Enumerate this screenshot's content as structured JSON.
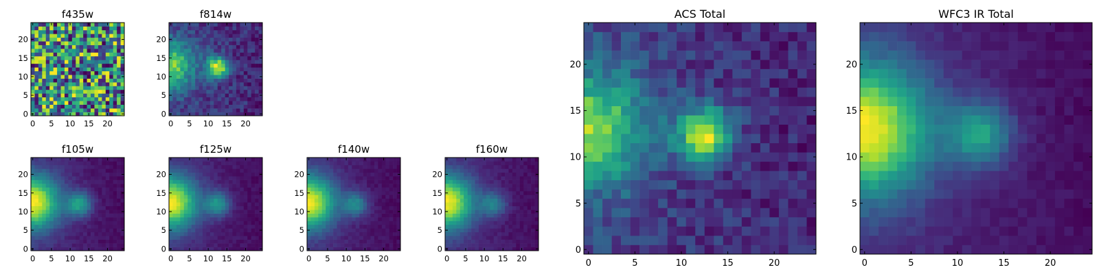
{
  "colormap": {
    "name": "viridis",
    "stops": [
      "#440154",
      "#482878",
      "#3e4989",
      "#31688e",
      "#26828e",
      "#1f9e89",
      "#35b779",
      "#6ece58",
      "#b5de2b",
      "#fde725"
    ]
  },
  "chart_data": [
    {
      "id": "f435w",
      "type": "heatmap",
      "title": "f435w",
      "image_size": [
        25,
        25
      ],
      "xlim": [
        -0.5,
        24.5
      ],
      "ylim": [
        -0.5,
        24.5
      ],
      "xticks": [
        0,
        5,
        10,
        15,
        20
      ],
      "yticks": [
        0,
        5,
        10,
        15,
        20
      ],
      "model": {
        "noise_level": "high",
        "point_source": null,
        "edge_source": null,
        "background": 0.78
      }
    },
    {
      "id": "f814w",
      "type": "heatmap",
      "title": "f814w",
      "image_size": [
        25,
        25
      ],
      "xlim": [
        -0.5,
        24.5
      ],
      "ylim": [
        -0.5,
        24.5
      ],
      "xticks": [
        0,
        5,
        10,
        15,
        20
      ],
      "yticks": [
        0,
        5,
        10,
        15,
        20
      ],
      "model": {
        "point_source": {
          "x": 12.5,
          "y": 12.5,
          "peak": 1.0,
          "width": 2.0
        },
        "edge_source": {
          "x": 0,
          "y": 13,
          "peak": 0.75,
          "width": 4.5
        },
        "background": 0.35,
        "noise_level": "medium"
      }
    },
    {
      "id": "f105w",
      "type": "heatmap",
      "title": "f105w",
      "image_size": [
        25,
        25
      ],
      "xlim": [
        -0.5,
        24.5
      ],
      "ylim": [
        -0.5,
        24.5
      ],
      "xticks": [
        0,
        5,
        10,
        15,
        20
      ],
      "yticks": [
        0,
        5,
        10,
        15,
        20
      ],
      "model": {
        "point_source": {
          "x": 12.5,
          "y": 12,
          "peak": 0.55,
          "width": 2.3
        },
        "edge_source": {
          "x": 0,
          "y": 12.5,
          "peak": 1.0,
          "width": 5.0
        },
        "background": 0.2,
        "noise_level": "low"
      }
    },
    {
      "id": "f125w",
      "type": "heatmap",
      "title": "f125w",
      "image_size": [
        25,
        25
      ],
      "xlim": [
        -0.5,
        24.5
      ],
      "ylim": [
        -0.5,
        24.5
      ],
      "xticks": [
        0,
        5,
        10,
        15,
        20
      ],
      "yticks": [
        0,
        5,
        10,
        15,
        20
      ],
      "model": {
        "point_source": {
          "x": 12.5,
          "y": 12,
          "peak": 0.5,
          "width": 2.3
        },
        "edge_source": {
          "x": 0,
          "y": 12.5,
          "peak": 1.0,
          "width": 5.0
        },
        "background": 0.2,
        "noise_level": "low"
      }
    },
    {
      "id": "f140w",
      "type": "heatmap",
      "title": "f140w",
      "image_size": [
        25,
        25
      ],
      "xlim": [
        -0.5,
        24.5
      ],
      "ylim": [
        -0.5,
        24.5
      ],
      "xticks": [
        0,
        5,
        10,
        15,
        20
      ],
      "yticks": [
        0,
        5,
        10,
        15,
        20
      ],
      "model": {
        "point_source": {
          "x": 12.5,
          "y": 12,
          "peak": 0.45,
          "width": 2.3
        },
        "edge_source": {
          "x": 0,
          "y": 12.5,
          "peak": 1.0,
          "width": 5.0
        },
        "background": 0.18,
        "noise_level": "low"
      }
    },
    {
      "id": "f160w",
      "type": "heatmap",
      "title": "f160w",
      "image_size": [
        25,
        25
      ],
      "xlim": [
        -0.5,
        24.5
      ],
      "ylim": [
        -0.5,
        24.5
      ],
      "xticks": [
        0,
        5,
        10,
        15,
        20
      ],
      "yticks": [
        0,
        5,
        10,
        15,
        20
      ],
      "model": {
        "point_source": {
          "x": 12.5,
          "y": 12,
          "peak": 0.42,
          "width": 2.3
        },
        "edge_source": {
          "x": 0,
          "y": 12.5,
          "peak": 1.0,
          "width": 5.0
        },
        "background": 0.15,
        "noise_level": "low"
      }
    },
    {
      "id": "acs-total",
      "type": "heatmap",
      "title": "ACS Total",
      "image_size": [
        25,
        25
      ],
      "xlim": [
        -0.5,
        24.5
      ],
      "ylim": [
        -0.5,
        24.5
      ],
      "xticks": [
        0,
        5,
        10,
        15,
        20
      ],
      "yticks": [
        0,
        5,
        10,
        15,
        20
      ],
      "model": {
        "point_source": {
          "x": 12.5,
          "y": 12.5,
          "peak": 1.0,
          "width": 2.0
        },
        "edge_source": {
          "x": 0,
          "y": 13,
          "peak": 0.8,
          "width": 4.5
        },
        "background": 0.35,
        "noise_level": "medium"
      }
    },
    {
      "id": "wfc3-ir-total",
      "type": "heatmap",
      "title": "WFC3 IR Total",
      "image_size": [
        25,
        25
      ],
      "xlim": [
        -0.5,
        24.5
      ],
      "ylim": [
        -0.5,
        24.5
      ],
      "xticks": [
        0,
        5,
        10,
        15,
        20
      ],
      "yticks": [
        0,
        5,
        10,
        15,
        20
      ],
      "model": {
        "point_source": {
          "x": 12.5,
          "y": 12.5,
          "peak": 0.55,
          "width": 2.4
        },
        "edge_source": {
          "x": 0,
          "y": 13,
          "peak": 1.0,
          "width": 5.0
        },
        "background": 0.15,
        "noise_level": "low"
      }
    }
  ]
}
